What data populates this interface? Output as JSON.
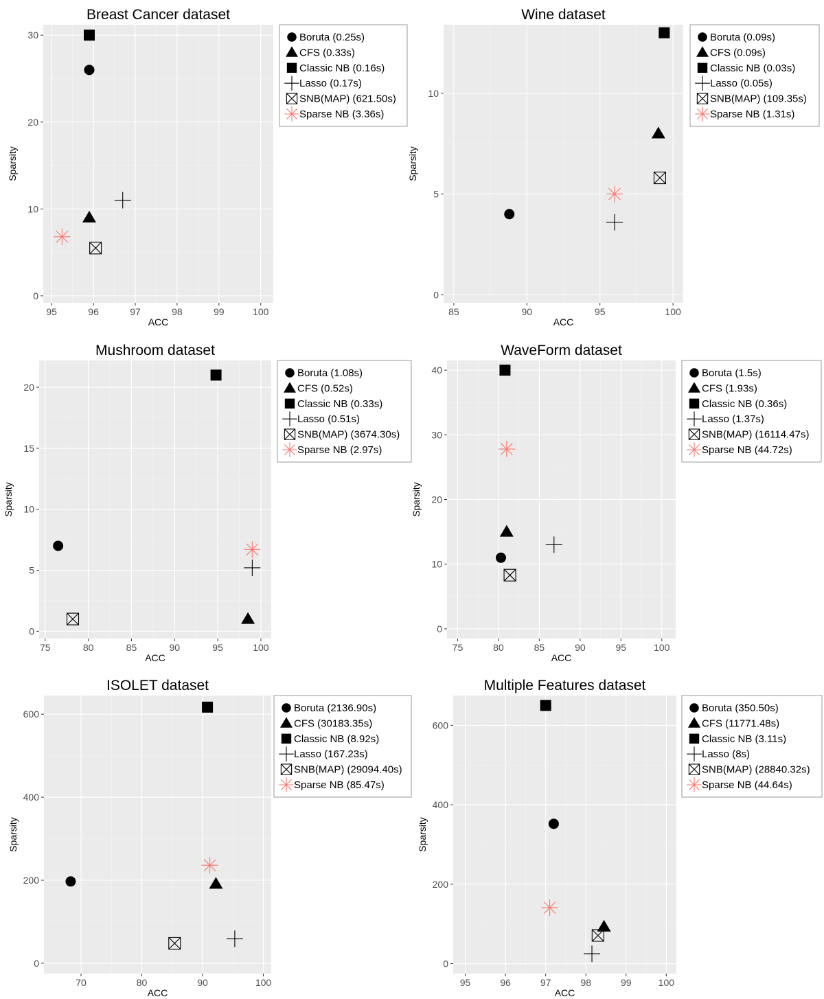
{
  "chart_data": [
    {
      "type": "scatter",
      "title": "Breast Cancer dataset",
      "xlabel": "ACC",
      "ylabel": "Sparsity",
      "xlim": [
        94.8,
        100.3
      ],
      "ylim": [
        -0.8,
        31.2
      ],
      "xticks": [
        95,
        96,
        97,
        98,
        99,
        100
      ],
      "yticks": [
        0,
        10,
        20,
        30
      ],
      "grid": true,
      "legend_position": "right",
      "series": [
        {
          "name": "Boruta (0.25s)",
          "marker": "circle",
          "x": [
            95.9
          ],
          "y": [
            26
          ]
        },
        {
          "name": "CFS (0.33s)",
          "marker": "triangle",
          "x": [
            95.9
          ],
          "y": [
            9
          ]
        },
        {
          "name": "Classic NB (0.16s)",
          "marker": "square",
          "x": [
            95.9
          ],
          "y": [
            30
          ]
        },
        {
          "name": "Lasso (0.17s)",
          "marker": "plus",
          "x": [
            96.7
          ],
          "y": [
            11
          ]
        },
        {
          "name": "SNB(MAP) (621.50s)",
          "marker": "boxx",
          "x": [
            96.05
          ],
          "y": [
            5.5
          ]
        },
        {
          "name": "Sparse NB (3.36s)",
          "marker": "asterisk",
          "x": [
            95.25
          ],
          "y": [
            6.8
          ]
        }
      ]
    },
    {
      "type": "scatter",
      "title": "Wine dataset",
      "xlabel": "ACC",
      "ylabel": "Sparsity",
      "xlim": [
        84.3,
        100.7
      ],
      "ylim": [
        -0.4,
        13.4
      ],
      "xticks": [
        85,
        90,
        95,
        100
      ],
      "yticks": [
        0,
        5,
        10
      ],
      "grid": true,
      "legend_position": "right",
      "series": [
        {
          "name": "Boruta (0.09s)",
          "marker": "circle",
          "x": [
            88.8
          ],
          "y": [
            4
          ]
        },
        {
          "name": "CFS (0.09s)",
          "marker": "triangle",
          "x": [
            99
          ],
          "y": [
            8
          ]
        },
        {
          "name": "Classic NB (0.03s)",
          "marker": "square",
          "x": [
            99.4
          ],
          "y": [
            13
          ]
        },
        {
          "name": "Lasso (0.05s)",
          "marker": "plus",
          "x": [
            96
          ],
          "y": [
            3.6
          ]
        },
        {
          "name": "SNB(MAP) (109.35s)",
          "marker": "boxx",
          "x": [
            99.1
          ],
          "y": [
            5.8
          ]
        },
        {
          "name": "Sparse NB (1.31s)",
          "marker": "asterisk",
          "x": [
            96
          ],
          "y": [
            5
          ]
        }
      ]
    },
    {
      "type": "scatter",
      "title": "Mushroom dataset",
      "xlabel": "ACC",
      "ylabel": "Sparsity",
      "xlim": [
        74.3,
        101.2
      ],
      "ylim": [
        -0.6,
        22.2
      ],
      "xticks": [
        75,
        80,
        85,
        90,
        95,
        100
      ],
      "yticks": [
        0,
        5,
        10,
        15,
        20
      ],
      "grid": true,
      "legend_position": "right",
      "series": [
        {
          "name": "Boruta (1.08s)",
          "marker": "circle",
          "x": [
            76.5
          ],
          "y": [
            7
          ]
        },
        {
          "name": "CFS (0.52s)",
          "marker": "triangle",
          "x": [
            98.5
          ],
          "y": [
            1
          ]
        },
        {
          "name": "Classic NB (0.33s)",
          "marker": "square",
          "x": [
            94.8
          ],
          "y": [
            21
          ]
        },
        {
          "name": "Lasso (0.51s)",
          "marker": "plus",
          "x": [
            99
          ],
          "y": [
            5.2
          ]
        },
        {
          "name": "SNB(MAP) (3674.30s)",
          "marker": "boxx",
          "x": [
            78.2
          ],
          "y": [
            1
          ]
        },
        {
          "name": "Sparse NB (2.97s)",
          "marker": "asterisk",
          "x": [
            99
          ],
          "y": [
            6.7
          ]
        }
      ]
    },
    {
      "type": "scatter",
      "title": "WaveForm dataset",
      "xlabel": "ACC",
      "ylabel": "Sparsity",
      "xlim": [
        73.7,
        101.7
      ],
      "ylim": [
        -1.5,
        41.5
      ],
      "xticks": [
        75,
        80,
        85,
        90,
        95,
        100
      ],
      "yticks": [
        0,
        10,
        20,
        30,
        40
      ],
      "grid": true,
      "legend_position": "right",
      "series": [
        {
          "name": "Boruta (1.5s)",
          "marker": "circle",
          "x": [
            80.3
          ],
          "y": [
            11
          ]
        },
        {
          "name": "CFS (1.93s)",
          "marker": "triangle",
          "x": [
            81
          ],
          "y": [
            15
          ]
        },
        {
          "name": "Classic NB (0.36s)",
          "marker": "square",
          "x": [
            80.8
          ],
          "y": [
            40
          ]
        },
        {
          "name": "Lasso (1.37s)",
          "marker": "plus",
          "x": [
            86.8
          ],
          "y": [
            13
          ]
        },
        {
          "name": "SNB(MAP) (16114.47s)",
          "marker": "boxx",
          "x": [
            81.4
          ],
          "y": [
            8.3
          ]
        },
        {
          "name": "Sparse NB (44.72s)",
          "marker": "asterisk",
          "x": [
            81
          ],
          "y": [
            27.8
          ]
        }
      ]
    },
    {
      "type": "scatter",
      "title": "ISOLET dataset",
      "xlabel": "ACC",
      "ylabel": "Sparsity",
      "xlim": [
        63.9,
        101.3
      ],
      "ylim": [
        -25,
        645
      ],
      "xticks": [
        70,
        80,
        90,
        100
      ],
      "yticks": [
        0,
        200,
        400,
        600
      ],
      "grid": true,
      "legend_position": "right",
      "series": [
        {
          "name": "Boruta (2136.90s)",
          "marker": "circle",
          "x": [
            68.3
          ],
          "y": [
            197
          ]
        },
        {
          "name": "CFS (30183.35s)",
          "marker": "triangle",
          "x": [
            92.2
          ],
          "y": [
            191
          ]
        },
        {
          "name": "Classic NB (8.92s)",
          "marker": "square",
          "x": [
            90.8
          ],
          "y": [
            617
          ]
        },
        {
          "name": "Lasso (167.23s)",
          "marker": "plus",
          "x": [
            95.3
          ],
          "y": [
            59
          ]
        },
        {
          "name": "SNB(MAP) (29094.40s)",
          "marker": "boxx",
          "x": [
            85.4
          ],
          "y": [
            48
          ]
        },
        {
          "name": "Sparse NB (85.47s)",
          "marker": "asterisk",
          "x": [
            91.2
          ],
          "y": [
            236
          ]
        }
      ]
    },
    {
      "type": "scatter",
      "title": "Multiple Features dataset",
      "xlabel": "ACC",
      "ylabel": "Sparsity",
      "xlim": [
        94.7,
        100.25
      ],
      "ylim": [
        -25,
        675
      ],
      "xticks": [
        95,
        96,
        97,
        98,
        99,
        100
      ],
      "yticks": [
        0,
        200,
        400,
        600
      ],
      "grid": true,
      "legend_position": "right",
      "series": [
        {
          "name": "Boruta (350.50s)",
          "marker": "circle",
          "x": [
            97.2
          ],
          "y": [
            352
          ]
        },
        {
          "name": "CFS (11771.48s)",
          "marker": "triangle",
          "x": [
            98.45
          ],
          "y": [
            93
          ]
        },
        {
          "name": "Classic NB (3.11s)",
          "marker": "square",
          "x": [
            97
          ],
          "y": [
            650
          ]
        },
        {
          "name": "Lasso (8s)",
          "marker": "plus",
          "x": [
            98.15
          ],
          "y": [
            25
          ]
        },
        {
          "name": "SNB(MAP) (28840.32s)",
          "marker": "boxx",
          "x": [
            98.3
          ],
          "y": [
            71
          ]
        },
        {
          "name": "Sparse NB (44.64s)",
          "marker": "asterisk",
          "x": [
            97.1
          ],
          "y": [
            141
          ]
        }
      ]
    }
  ],
  "colors": {
    "panel": "#ebebeb",
    "grid_major": "#ffffff",
    "grid_minor": "#f4f4f4",
    "marker": "#000000",
    "sparse_nb": "#f8766d",
    "tick_text": "#4d4d4d"
  }
}
